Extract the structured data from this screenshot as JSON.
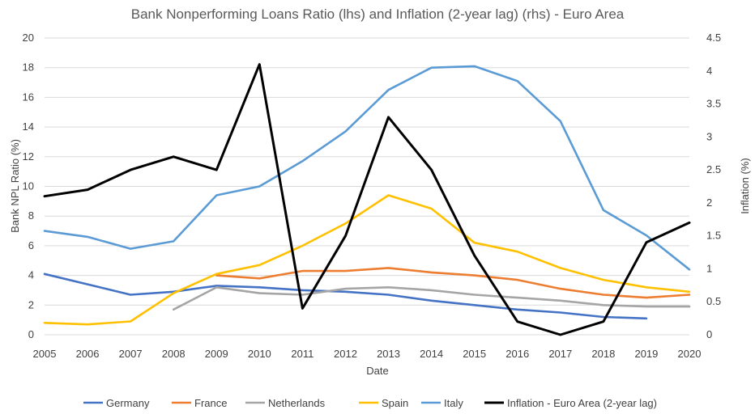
{
  "chart_data": {
    "type": "line",
    "title": "Bank Nonperforming Loans Ratio (lhs) and Inflation (2-year lag) (rhs) - Euro Area",
    "xlabel": "Date",
    "ylabel": "Bank NPL Ratio (%)",
    "y2label": "Inflation (%)",
    "x": [
      "2005",
      "2006",
      "2007",
      "2008",
      "2009",
      "2010",
      "2011",
      "2012",
      "2013",
      "2014",
      "2015",
      "2016",
      "2017",
      "2018",
      "2019",
      "2020"
    ],
    "ylim": [
      0,
      20
    ],
    "y2lim": [
      0,
      4.5
    ],
    "yticks": [
      "0",
      "2",
      "4",
      "6",
      "8",
      "10",
      "12",
      "14",
      "16",
      "18",
      "20"
    ],
    "y2ticks": [
      "0",
      "0.5",
      "1",
      "1.5",
      "2",
      "2.5",
      "3",
      "3.5",
      "4",
      "4.5"
    ],
    "grid": true,
    "legend_position": "bottom",
    "series": [
      {
        "name": "Germany",
        "axis": "left",
        "color": "#4472c4",
        "values": [
          4.1,
          3.4,
          2.7,
          2.9,
          3.3,
          3.2,
          3.0,
          2.9,
          2.7,
          2.3,
          2.0,
          1.7,
          1.5,
          1.2,
          1.1,
          null
        ]
      },
      {
        "name": "France",
        "axis": "left",
        "color": "#ed7d31",
        "values": [
          null,
          null,
          null,
          null,
          4.0,
          3.8,
          4.3,
          4.3,
          4.5,
          4.2,
          4.0,
          3.7,
          3.1,
          2.7,
          2.5,
          2.7
        ]
      },
      {
        "name": "Netherlands",
        "axis": "left",
        "color": "#a5a5a5",
        "values": [
          null,
          null,
          null,
          1.7,
          3.2,
          2.8,
          2.7,
          3.1,
          3.2,
          3.0,
          2.7,
          2.5,
          2.3,
          2.0,
          1.9,
          1.9
        ]
      },
      {
        "name": "Spain",
        "axis": "left",
        "color": "#ffc000",
        "values": [
          0.8,
          0.7,
          0.9,
          2.8,
          4.1,
          4.7,
          6.0,
          7.5,
          9.4,
          8.5,
          6.2,
          5.6,
          4.5,
          3.7,
          3.2,
          2.9
        ]
      },
      {
        "name": "Italy",
        "axis": "left",
        "color": "#5b9bd5",
        "values": [
          7.0,
          6.6,
          5.8,
          6.3,
          9.4,
          10.0,
          11.7,
          13.7,
          16.5,
          18.0,
          18.1,
          17.1,
          14.4,
          8.4,
          6.7,
          4.4
        ]
      },
      {
        "name": "Inflation - Euro Area (2-year lag)",
        "axis": "right",
        "color": "#000000",
        "values": [
          2.1,
          2.2,
          2.5,
          2.7,
          2.5,
          4.1,
          0.4,
          1.5,
          3.3,
          2.5,
          1.2,
          0.2,
          0.0,
          0.2,
          1.4,
          1.7
        ]
      }
    ]
  }
}
